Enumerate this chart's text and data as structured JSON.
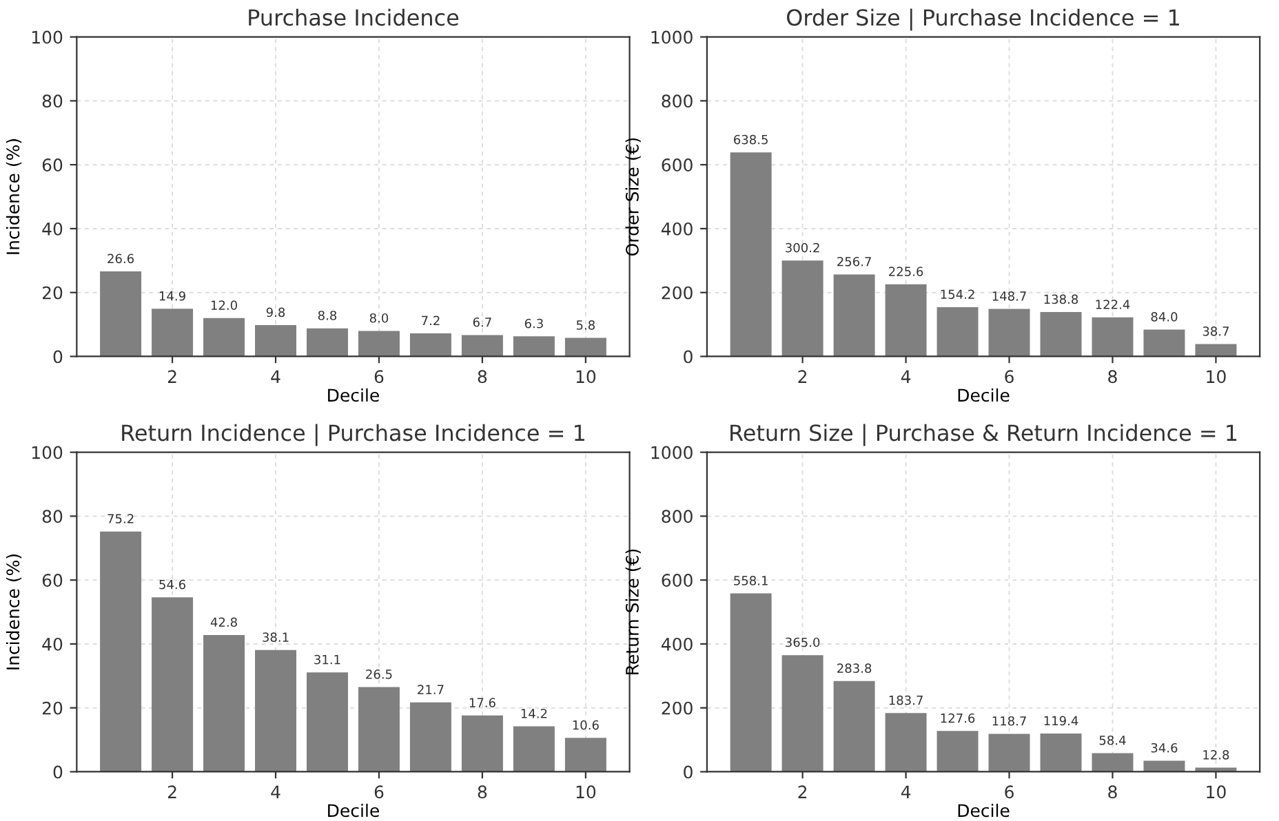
{
  "chart_data": [
    {
      "type": "bar",
      "title": "Purchase Incidence",
      "xlabel": "Decile",
      "ylabel": "Incidence (%)",
      "x": [
        1,
        2,
        3,
        4,
        5,
        6,
        7,
        8,
        9,
        10
      ],
      "values": [
        26.6,
        14.9,
        12.0,
        9.8,
        8.8,
        8.0,
        7.2,
        6.7,
        6.3,
        5.8
      ],
      "value_labels": [
        "26.6",
        "14.9",
        "12.0",
        "9.8",
        "8.8",
        "8.0",
        "7.2",
        "6.7",
        "6.3",
        "5.8"
      ],
      "color": "#808080",
      "xlim": [
        0.15,
        10.85
      ],
      "xticks": [
        2,
        4,
        6,
        8,
        10
      ],
      "ylim": [
        0,
        100
      ],
      "yticks": [
        0,
        20,
        40,
        60,
        80,
        100
      ],
      "grid": true
    },
    {
      "type": "bar",
      "title": "Order Size | Purchase Incidence = 1",
      "xlabel": "Decile",
      "ylabel": "Order Size (€)",
      "x": [
        1,
        2,
        3,
        4,
        5,
        6,
        7,
        8,
        9,
        10
      ],
      "values": [
        638.5,
        300.2,
        256.7,
        225.6,
        154.2,
        148.7,
        138.8,
        122.4,
        84.0,
        38.7
      ],
      "value_labels": [
        "638.5",
        "300.2",
        "256.7",
        "225.6",
        "154.2",
        "148.7",
        "138.8",
        "122.4",
        "84.0",
        "38.7"
      ],
      "color": "#808080",
      "xlim": [
        0.15,
        10.85
      ],
      "xticks": [
        2,
        4,
        6,
        8,
        10
      ],
      "ylim": [
        0,
        1000
      ],
      "yticks": [
        0,
        200,
        400,
        600,
        800,
        1000
      ],
      "grid": true
    },
    {
      "type": "bar",
      "title": "Return Incidence | Purchase Incidence = 1",
      "xlabel": "Decile",
      "ylabel": "Incidence (%)",
      "x": [
        1,
        2,
        3,
        4,
        5,
        6,
        7,
        8,
        9,
        10
      ],
      "values": [
        75.2,
        54.6,
        42.8,
        38.1,
        31.1,
        26.5,
        21.7,
        17.6,
        14.2,
        10.6
      ],
      "value_labels": [
        "75.2",
        "54.6",
        "42.8",
        "38.1",
        "31.1",
        "26.5",
        "21.7",
        "17.6",
        "14.2",
        "10.6"
      ],
      "color": "#808080",
      "xlim": [
        0.15,
        10.85
      ],
      "xticks": [
        2,
        4,
        6,
        8,
        10
      ],
      "ylim": [
        0,
        100
      ],
      "yticks": [
        0,
        20,
        40,
        60,
        80,
        100
      ],
      "grid": true
    },
    {
      "type": "bar",
      "title": "Return Size | Purchase & Return Incidence = 1",
      "xlabel": "Decile",
      "ylabel": "Return Size (€)",
      "x": [
        1,
        2,
        3,
        4,
        5,
        6,
        7,
        8,
        9,
        10
      ],
      "values": [
        558.1,
        365.0,
        283.8,
        183.7,
        127.6,
        118.7,
        119.4,
        58.4,
        34.6,
        12.8
      ],
      "value_labels": [
        "558.1",
        "365.0",
        "283.8",
        "183.7",
        "127.6",
        "118.7",
        "119.4",
        "58.4",
        "34.6",
        "12.8"
      ],
      "color": "#808080",
      "xlim": [
        0.15,
        10.85
      ],
      "xticks": [
        2,
        4,
        6,
        8,
        10
      ],
      "ylim": [
        0,
        1000
      ],
      "yticks": [
        0,
        200,
        400,
        600,
        800,
        1000
      ],
      "grid": true
    }
  ]
}
